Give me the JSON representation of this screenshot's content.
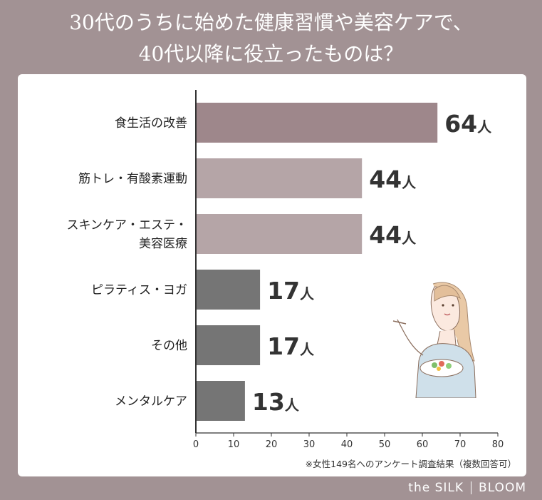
{
  "header": {
    "title_line1": "30代のうちに始めた健康習慣や美容ケアで、",
    "title_line2": "40代以降に役立ったものは？"
  },
  "footnote": "※女性149名へのアンケート調査結果（複数回答可）",
  "brand": {
    "left": "the SILK",
    "right": "BLOOM"
  },
  "colors": {
    "background": "#a29294",
    "bar_top": "#9e878b",
    "bar_mid": "#b5a5a7",
    "bar_low": "#757575",
    "axis": "#333333"
  },
  "chart_data": {
    "type": "bar",
    "orientation": "horizontal",
    "categories": [
      "食生活の改善",
      "筋トレ・有酸素運動",
      "スキンケア・エステ・美容医療",
      "ピラティス・ヨガ",
      "その他",
      "メンタルケア"
    ],
    "category_lines": [
      [
        "食生活の改善"
      ],
      [
        "筋トレ・有酸素運動"
      ],
      [
        "スキンケア・エステ・",
        "美容医療"
      ],
      [
        "ピラティス・ヨガ"
      ],
      [
        "その他"
      ],
      [
        "メンタルケア"
      ]
    ],
    "values": [
      64,
      44,
      44,
      17,
      17,
      13
    ],
    "value_suffix": "人",
    "bar_color_keys": [
      "bar_top",
      "bar_mid",
      "bar_mid",
      "bar_low",
      "bar_low",
      "bar_low"
    ],
    "xlim": [
      0,
      80
    ],
    "xticks": [
      0,
      10,
      20,
      30,
      40,
      50,
      60,
      70,
      80
    ],
    "grid": false
  }
}
